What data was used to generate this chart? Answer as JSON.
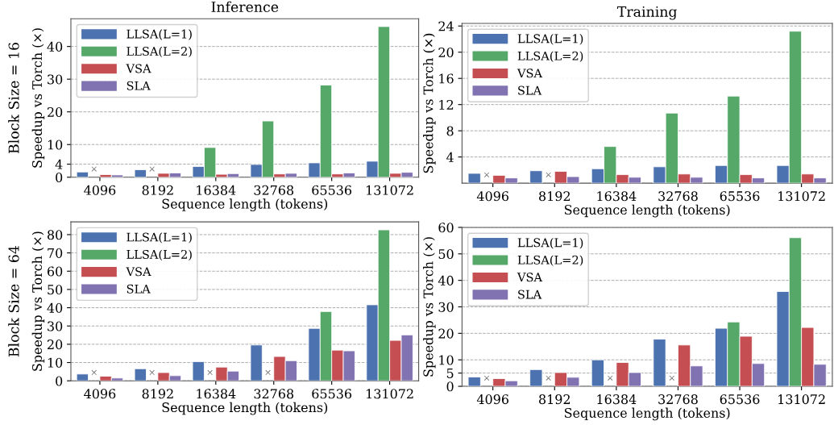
{
  "chart_data": [
    {
      "type": "bar",
      "title": "Inference",
      "xlabel": "Sequence length (tokens)",
      "ylabel": "Speedup vs Torch (×)",
      "categories": [
        "4096",
        "8192",
        "16384",
        "32768",
        "65536",
        "131072"
      ],
      "series": [
        {
          "name": "LLSA(L=1)",
          "color": "#4c72b0",
          "values": [
            1.6,
            2.3,
            3.3,
            3.9,
            4.4,
            4.9
          ]
        },
        {
          "name": "LLSA(L=2)",
          "color": "#55a868",
          "values": [
            null,
            null,
            9.1,
            17.2,
            28.2,
            46.1
          ]
        },
        {
          "name": "VSA",
          "color": "#c44e52",
          "values": [
            0.8,
            1.2,
            0.9,
            1.0,
            1.0,
            1.2
          ]
        },
        {
          "name": "SLA",
          "color": "#8172b2",
          "values": [
            0.7,
            1.3,
            1.1,
            1.2,
            1.3,
            1.5
          ]
        }
      ],
      "ylim": [
        0,
        48.5
      ],
      "yticks": [
        0,
        4,
        10,
        20,
        30,
        40
      ],
      "grid": "y",
      "legend": "top left",
      "annotations": [
        "Block Size = 16",
        "×",
        "×"
      ]
    },
    {
      "type": "bar",
      "title": "Training",
      "xlabel": "Sequence length (tokens)",
      "ylabel": "Speedup vs Torch (×)",
      "categories": [
        "4096",
        "8192",
        "16384",
        "32768",
        "65536",
        "131072"
      ],
      "series": [
        {
          "name": "LLSA(L=1)",
          "color": "#4c72b0",
          "values": [
            1.5,
            1.9,
            2.2,
            2.5,
            2.7,
            2.7
          ]
        },
        {
          "name": "LLSA(L=2)",
          "color": "#55a868",
          "values": [
            null,
            null,
            5.6,
            10.7,
            13.3,
            23.2
          ]
        },
        {
          "name": "VSA",
          "color": "#c44e52",
          "values": [
            1.2,
            1.8,
            1.3,
            1.4,
            1.3,
            1.4
          ]
        },
        {
          "name": "SLA",
          "color": "#8172b2",
          "values": [
            0.8,
            1.0,
            0.9,
            0.9,
            0.8,
            0.8
          ]
        }
      ],
      "ylim": [
        0,
        24.4
      ],
      "yticks": [
        4,
        8,
        12,
        16,
        20,
        24
      ],
      "grid": "y",
      "legend": "top left",
      "annotations": [
        "×",
        "×"
      ]
    },
    {
      "type": "bar",
      "xlabel": "Sequence length (tokens)",
      "ylabel": "Speedup vs Torch (×)",
      "categories": [
        "4096",
        "8192",
        "16384",
        "32768",
        "65536",
        "131072"
      ],
      "series": [
        {
          "name": "LLSA(L=1)",
          "color": "#4c72b0",
          "values": [
            3.7,
            6.6,
            10.5,
            19.6,
            28.7,
            41.6
          ]
        },
        {
          "name": "LLSA(L=2)",
          "color": "#55a868",
          "values": [
            null,
            null,
            null,
            null,
            37.9,
            82.6
          ]
        },
        {
          "name": "VSA",
          "color": "#c44e52",
          "values": [
            2.5,
            4.5,
            7.5,
            13.3,
            16.8,
            22.1
          ]
        },
        {
          "name": "SLA",
          "color": "#8172b2",
          "values": [
            1.5,
            2.8,
            5.3,
            11,
            16.4,
            25.1
          ]
        }
      ],
      "ylim": [
        0,
        87
      ],
      "yticks": [
        0,
        10,
        20,
        30,
        40,
        50,
        60,
        70,
        80
      ],
      "grid": "y",
      "legend": "top left",
      "annotations": [
        "Block Size = 64",
        "×",
        "×",
        "×",
        "×"
      ]
    },
    {
      "type": "bar",
      "xlabel": "Sequence length (tokens)",
      "ylabel": "Speedup vs Torch (×)",
      "categories": [
        "4096",
        "8192",
        "16384",
        "32768",
        "65536",
        "131072"
      ],
      "series": [
        {
          "name": "LLSA(L=1)",
          "color": "#4c72b0",
          "values": [
            3.5,
            6.3,
            10,
            17.8,
            21.9,
            35.8
          ]
        },
        {
          "name": "LLSA(L=2)",
          "color": "#55a868",
          "values": [
            null,
            null,
            null,
            null,
            24.3,
            56.1
          ]
        },
        {
          "name": "VSA",
          "color": "#c44e52",
          "values": [
            2.9,
            5.2,
            9,
            15.6,
            18.9,
            22.2
          ]
        },
        {
          "name": "SLA",
          "color": "#8172b2",
          "values": [
            2.1,
            3.4,
            5.2,
            7.7,
            8.6,
            8.3
          ]
        }
      ],
      "ylim": [
        0,
        60
      ],
      "yticks": [
        0,
        5,
        10,
        20,
        30,
        40,
        50,
        60
      ],
      "grid": "y",
      "legend": "top left",
      "annotations": [
        "×",
        "×",
        "×",
        "×"
      ]
    }
  ]
}
